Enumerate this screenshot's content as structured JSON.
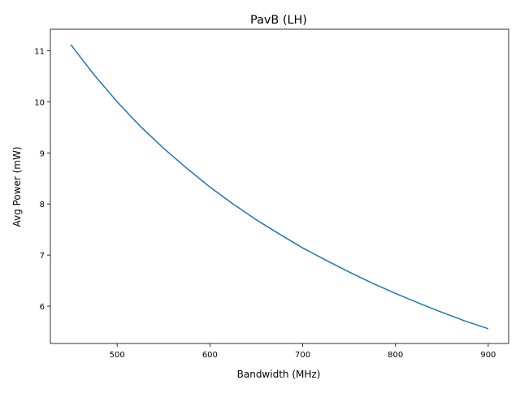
{
  "chart_data": {
    "type": "line",
    "title": "PavB (LH)",
    "xlabel": "Bandwidth (MHz)",
    "ylabel": "Avg Power (mW)",
    "xlim": [
      428,
      922
    ],
    "ylim": [
      5.27,
      11.42
    ],
    "xticks": [
      500,
      600,
      700,
      800,
      900
    ],
    "yticks": [
      6,
      7,
      8,
      9,
      10,
      11
    ],
    "grid": false,
    "series": [
      {
        "name": "",
        "color": "#1f77b4",
        "x": [
          450,
          475,
          500,
          525,
          550,
          575,
          600,
          625,
          650,
          675,
          700,
          725,
          750,
          775,
          800,
          825,
          850,
          875,
          900
        ],
        "y": [
          11.12,
          10.53,
          10.0,
          9.52,
          9.09,
          8.7,
          8.33,
          8.0,
          7.69,
          7.41,
          7.14,
          6.9,
          6.67,
          6.45,
          6.25,
          6.06,
          5.88,
          5.71,
          5.56
        ]
      }
    ]
  }
}
